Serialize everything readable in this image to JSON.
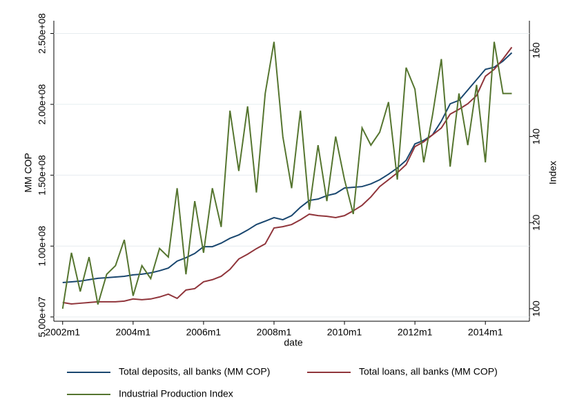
{
  "chart_data": {
    "type": "line",
    "x_label": "date",
    "y_label": "MM COP",
    "y2_label": "Index",
    "x": [
      "2002m1",
      "2002m4",
      "2002m7",
      "2002m10",
      "2003m1",
      "2003m4",
      "2003m7",
      "2003m10",
      "2004m1",
      "2004m4",
      "2004m7",
      "2004m10",
      "2005m1",
      "2005m4",
      "2005m7",
      "2005m10",
      "2006m1",
      "2006m4",
      "2006m7",
      "2006m10",
      "2007m1",
      "2007m4",
      "2007m7",
      "2007m10",
      "2008m1",
      "2008m4",
      "2008m7",
      "2008m10",
      "2009m1",
      "2009m4",
      "2009m7",
      "2009m10",
      "2010m1",
      "2010m4",
      "2010m7",
      "2010m10",
      "2011m1",
      "2011m4",
      "2011m7",
      "2011m10",
      "2012m1",
      "2012m4",
      "2012m7",
      "2012m10",
      "2013m1",
      "2013m4",
      "2013m7",
      "2013m10",
      "2014m1",
      "2014m4",
      "2014m7",
      "2014m10"
    ],
    "xlim": [
      "2001m10",
      "2015m4"
    ],
    "xticks": [
      "2002m1",
      "2004m1",
      "2006m1",
      "2008m1",
      "2010m1",
      "2012m1",
      "2014m1"
    ],
    "ylim": [
      47000000,
      259000000
    ],
    "yticks": [
      {
        "value": 50000000,
        "label": "5.00e+07"
      },
      {
        "value": 100000000,
        "label": "1.00e+08"
      },
      {
        "value": 150000000,
        "label": "1.50e+08"
      },
      {
        "value": 200000000,
        "label": "2.00e+08"
      },
      {
        "value": 250000000,
        "label": "2.50e+08"
      }
    ],
    "y2lim": [
      97.1,
      166.9
    ],
    "y2ticks": [
      100,
      120,
      140,
      160
    ],
    "grid": true,
    "legend": "bottom",
    "series": [
      {
        "name": "Total deposits, all banks (MM COP)",
        "color": "#1a476f",
        "values": [
          74300000,
          74800000,
          75300000,
          76300000,
          77300000,
          77700000,
          78200000,
          78700000,
          79700000,
          80200000,
          81100000,
          82600000,
          84500000,
          89400000,
          91800000,
          94800000,
          99600000,
          99600000,
          102100000,
          105500000,
          107900000,
          111300000,
          115200000,
          117600000,
          120100000,
          118600000,
          121500000,
          127400000,
          132200000,
          133200000,
          135600000,
          137100000,
          141000000,
          141500000,
          142000000,
          143900000,
          146800000,
          150700000,
          155100000,
          160500000,
          172100000,
          174600000,
          178500000,
          188200000,
          200400000,
          202800000,
          210100000,
          217400000,
          224700000,
          226200000,
          230500000,
          236400000
        ]
      },
      {
        "name": "Total loans, all banks (MM COP)",
        "color": "#90353b",
        "values": [
          60200000,
          59200000,
          59700000,
          60200000,
          60700000,
          60700000,
          60700000,
          61200000,
          62700000,
          62200000,
          62700000,
          64100000,
          66100000,
          63100000,
          69000000,
          70000000,
          74800000,
          76300000,
          78700000,
          83600000,
          90900000,
          94300000,
          98200000,
          101600000,
          112800000,
          113700000,
          115200000,
          118600000,
          122500000,
          121500000,
          121000000,
          120100000,
          121500000,
          124900000,
          128800000,
          134700000,
          142000000,
          146800000,
          151700000,
          157500000,
          170200000,
          173600000,
          178500000,
          183300000,
          193100000,
          196500000,
          200400000,
          206200000,
          219800000,
          224700000,
          232000000,
          240300000
        ]
      },
      {
        "name": "Industrial Production Index",
        "color": "#55752f",
        "axis": "y2",
        "values": [
          100,
          113,
          104,
          112,
          101,
          108,
          110,
          116,
          103,
          110,
          107,
          114,
          112,
          128,
          108,
          125,
          113,
          128,
          119,
          146,
          132,
          147,
          127,
          150,
          162,
          140,
          128,
          146,
          123,
          138,
          125,
          140,
          130,
          122,
          142,
          138,
          141,
          148,
          130,
          156,
          151,
          134,
          145,
          158,
          133,
          150,
          138,
          152,
          134,
          162,
          150,
          150
        ]
      }
    ]
  }
}
